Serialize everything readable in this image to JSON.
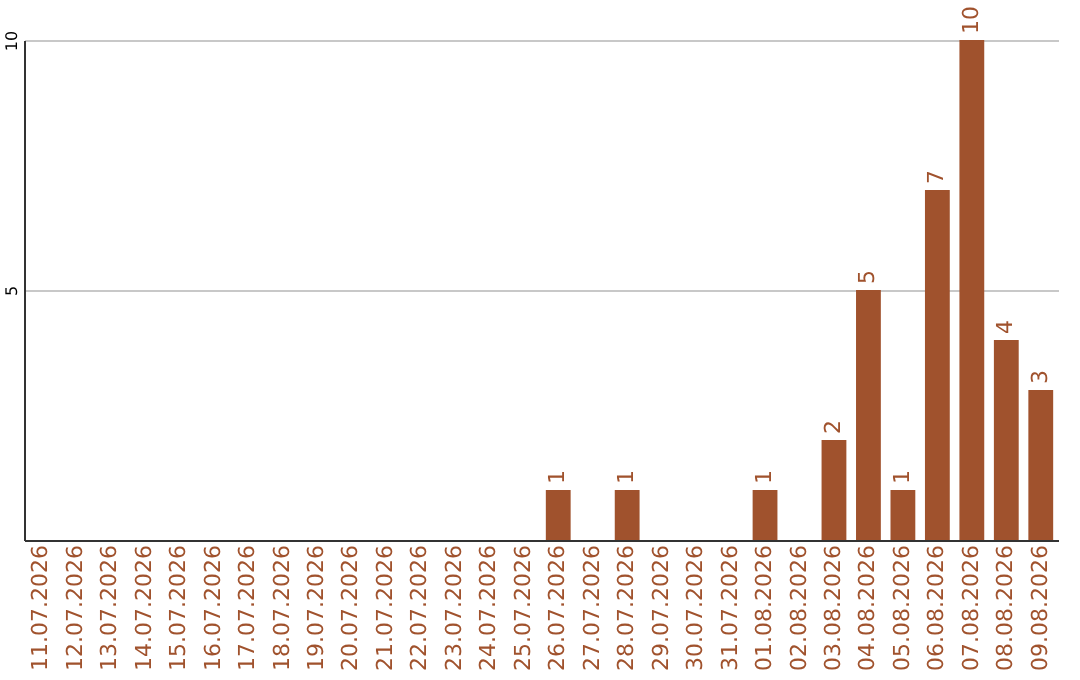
{
  "chart_data": {
    "type": "bar",
    "categories": [
      "11.07.2026",
      "12.07.2026",
      "13.07.2026",
      "14.07.2026",
      "15.07.2026",
      "16.07.2026",
      "17.07.2026",
      "18.07.2026",
      "19.07.2026",
      "20.07.2026",
      "21.07.2026",
      "22.07.2026",
      "23.07.2026",
      "24.07.2026",
      "25.07.2026",
      "26.07.2026",
      "27.07.2026",
      "28.07.2026",
      "29.07.2026",
      "30.07.2026",
      "31.07.2026",
      "01.08.2026",
      "02.08.2026",
      "03.08.2026",
      "04.08.2026",
      "05.08.2026",
      "06.08.2026",
      "07.08.2026",
      "08.08.2026",
      "09.08.2026"
    ],
    "values": [
      0,
      0,
      0,
      0,
      0,
      0,
      0,
      0,
      0,
      0,
      0,
      0,
      0,
      0,
      0,
      1,
      0,
      1,
      0,
      0,
      0,
      1,
      0,
      2,
      5,
      1,
      7,
      10,
      4,
      3
    ],
    "value_labels": [
      null,
      null,
      null,
      null,
      null,
      null,
      null,
      null,
      null,
      null,
      null,
      null,
      null,
      null,
      null,
      "1",
      null,
      "1",
      null,
      null,
      null,
      "1",
      null,
      "2",
      "5",
      "1",
      "7",
      "10",
      "4",
      "3"
    ],
    "color": "#a0522d",
    "ylim": [
      0,
      10
    ],
    "yticks": [
      5,
      10
    ],
    "grid": "y"
  }
}
